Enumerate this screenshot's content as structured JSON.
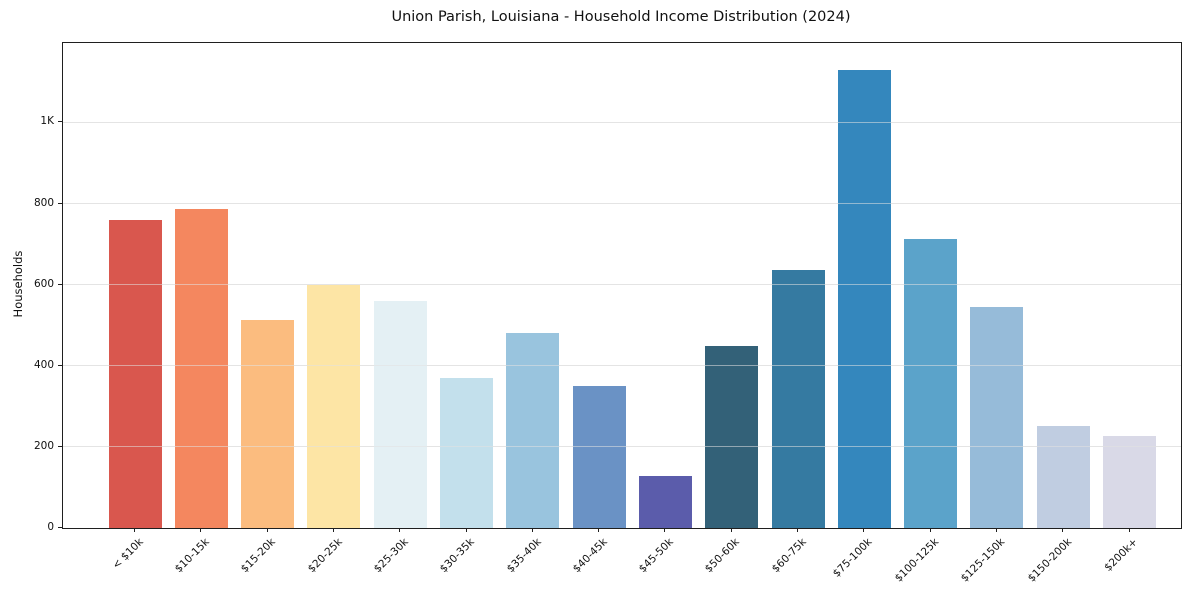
{
  "title": "Union Parish, Louisiana - Household Income Distribution (2024)",
  "chart_data": {
    "type": "bar",
    "title": "Union Parish, Louisiana - Household Income Distribution (2024)",
    "xlabel": "",
    "ylabel": "Households",
    "categories": [
      "< $10k",
      "$10-15k",
      "$15-20k",
      "$20-25k",
      "$25-30k",
      "$30-35k",
      "$35-40k",
      "$40-45k",
      "$45-50k",
      "$50-60k",
      "$60-75k",
      "$75-100k",
      "$100-125k",
      "$125-150k",
      "$150-200k",
      "$200k+"
    ],
    "values": [
      760,
      786,
      514,
      600,
      559,
      371,
      480,
      351,
      129,
      448,
      637,
      1130,
      712,
      545,
      251,
      228
    ],
    "bar_colors": [
      "#d9574e",
      "#f4875f",
      "#fbbc7f",
      "#fde5a5",
      "#e4f0f4",
      "#c3e0ec",
      "#99c4de",
      "#6a92c5",
      "#5b5cab",
      "#336178",
      "#357aa1",
      "#3487bd",
      "#5ba3ca",
      "#96bbd9",
      "#c0cde1",
      "#d9d9e7"
    ],
    "ylim": [
      0,
      1196
    ],
    "yticks": {
      "values": [
        0,
        200,
        400,
        600,
        800,
        1000
      ],
      "labels": [
        "0",
        "200",
        "400",
        "600",
        "800",
        "1K"
      ]
    },
    "grid": "horizontal",
    "legend": "none"
  }
}
